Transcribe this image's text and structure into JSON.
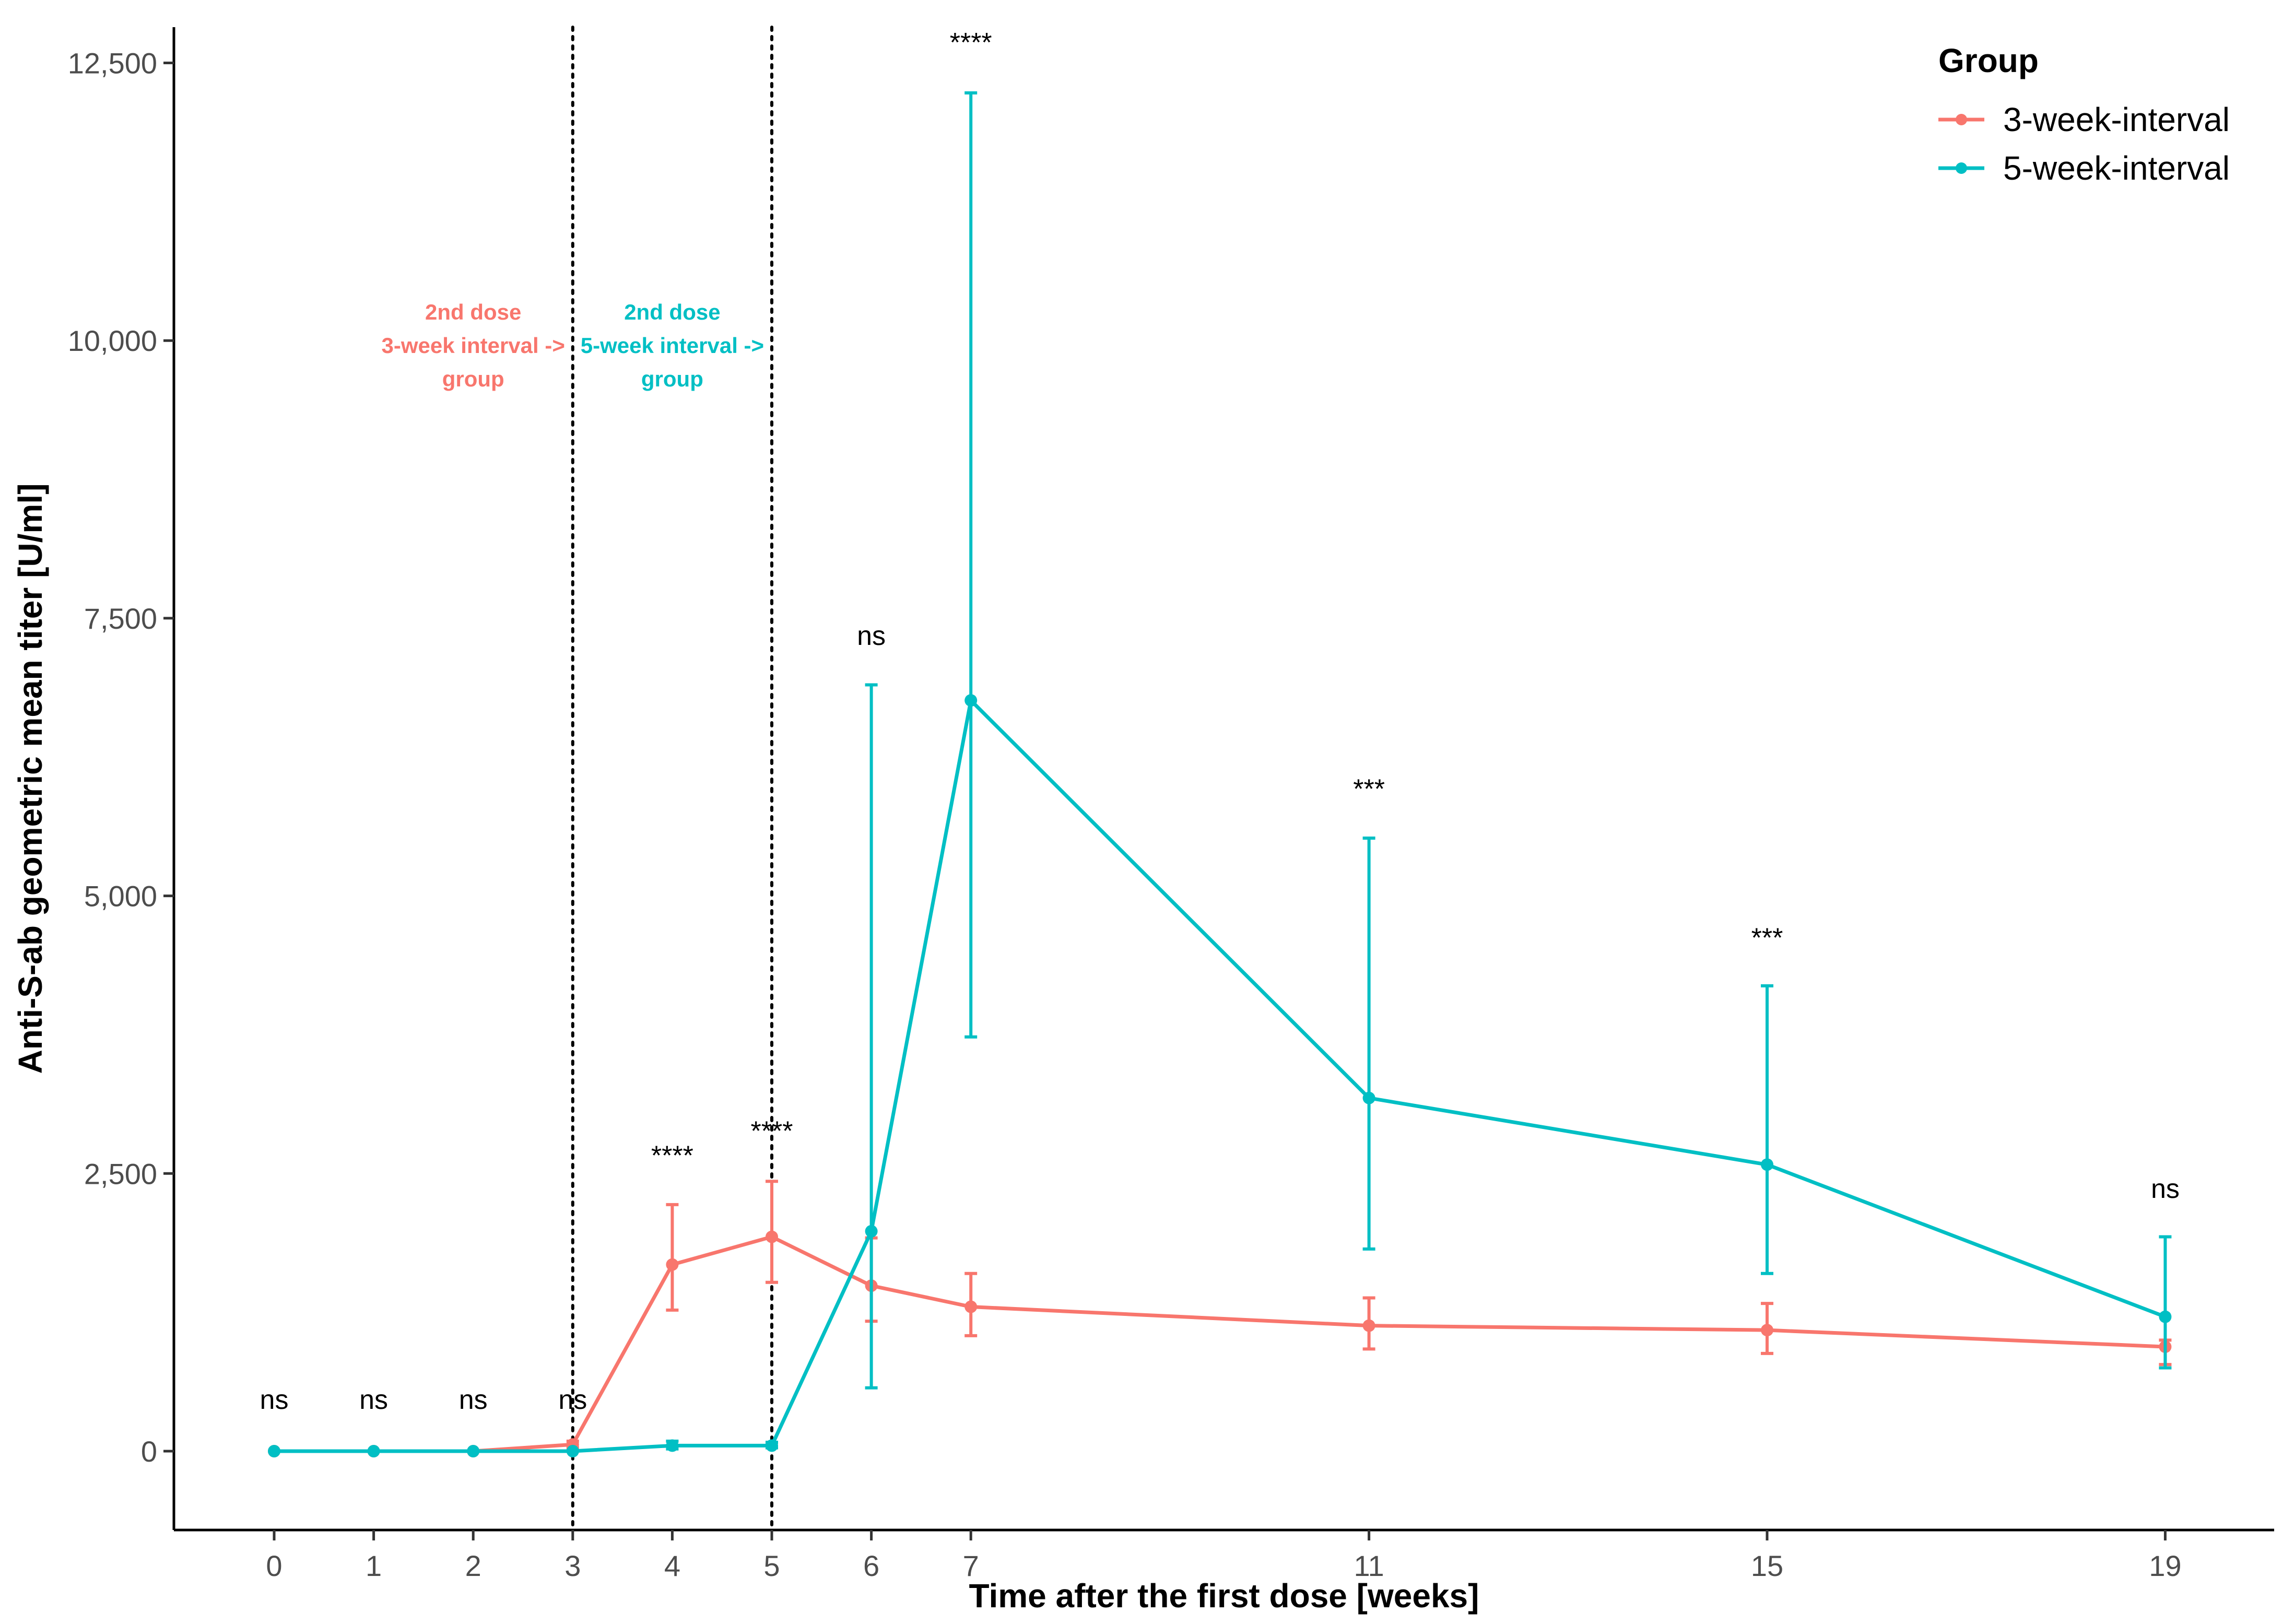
{
  "chart_data": {
    "type": "line",
    "xlabel": "Time after the first dose [weeks]",
    "ylabel": "Anti-S-ab geometric mean titer [U/ml]",
    "x_ticks": [
      0,
      1,
      2,
      3,
      4,
      5,
      6,
      7,
      11,
      15,
      19
    ],
    "x_tick_labels": [
      "0",
      "1",
      "2",
      "3",
      "4",
      "5",
      "6",
      "7",
      "11",
      "15",
      "19"
    ],
    "y_ticks": [
      0,
      2500,
      5000,
      7500,
      10000,
      12500
    ],
    "y_tick_labels": [
      "0",
      "2,500",
      "5,000",
      "7,500",
      "10,000",
      "12,500"
    ],
    "ylim": [
      -600,
      12850
    ],
    "legend": {
      "title": "Group",
      "position": "top-right",
      "entries": [
        "3-week-interval",
        "5-week-interval"
      ]
    },
    "series": [
      {
        "name": "3-week-interval",
        "color": "#F8766D",
        "x": [
          0,
          1,
          2,
          3,
          4,
          5,
          6,
          7,
          11,
          15,
          19
        ],
        "values": [
          0,
          0,
          0,
          60,
          1680,
          1930,
          1490,
          1300,
          1130,
          1090,
          940
        ],
        "error_low": [
          0,
          0,
          0,
          30,
          1270,
          1520,
          1170,
          1040,
          920,
          880,
          780
        ],
        "error_high": [
          0,
          0,
          0,
          90,
          2220,
          2430,
          1920,
          1600,
          1380,
          1330,
          1000
        ]
      },
      {
        "name": "5-week-interval",
        "color": "#00BFC4",
        "x": [
          0,
          1,
          2,
          3,
          4,
          5,
          6,
          7,
          11,
          15,
          19
        ],
        "values": [
          0,
          0,
          0,
          0,
          50,
          50,
          1980,
          6760,
          3180,
          2580,
          1210
        ],
        "error_low": [
          0,
          0,
          0,
          0,
          20,
          30,
          570,
          3730,
          1820,
          1600,
          750
        ],
        "error_high": [
          0,
          0,
          0,
          0,
          90,
          80,
          6900,
          12230,
          5520,
          4190,
          1930
        ]
      }
    ],
    "significance": [
      {
        "x": 0,
        "y": 380,
        "label": "ns"
      },
      {
        "x": 1,
        "y": 380,
        "label": "ns"
      },
      {
        "x": 2,
        "y": 380,
        "label": "ns"
      },
      {
        "x": 3,
        "y": 380,
        "label": "ns"
      },
      {
        "x": 4,
        "y": 2580,
        "label": "****"
      },
      {
        "x": 5,
        "y": 2800,
        "label": "****"
      },
      {
        "x": 6,
        "y": 7260,
        "label": "ns"
      },
      {
        "x": 7,
        "y": 12600,
        "label": "****"
      },
      {
        "x": 11,
        "y": 5880,
        "label": "***"
      },
      {
        "x": 15,
        "y": 4540,
        "label": "***"
      },
      {
        "x": 19,
        "y": 2280,
        "label": "ns"
      }
    ],
    "vlines": [
      3,
      5
    ],
    "annotations": [
      {
        "x": 2,
        "color": "#F8766D",
        "lines": [
          "2nd dose",
          "3-week interval ->",
          "group"
        ]
      },
      {
        "x": 4,
        "color": "#00BFC4",
        "lines": [
          "2nd dose",
          "5-week interval ->",
          "group"
        ]
      }
    ]
  }
}
